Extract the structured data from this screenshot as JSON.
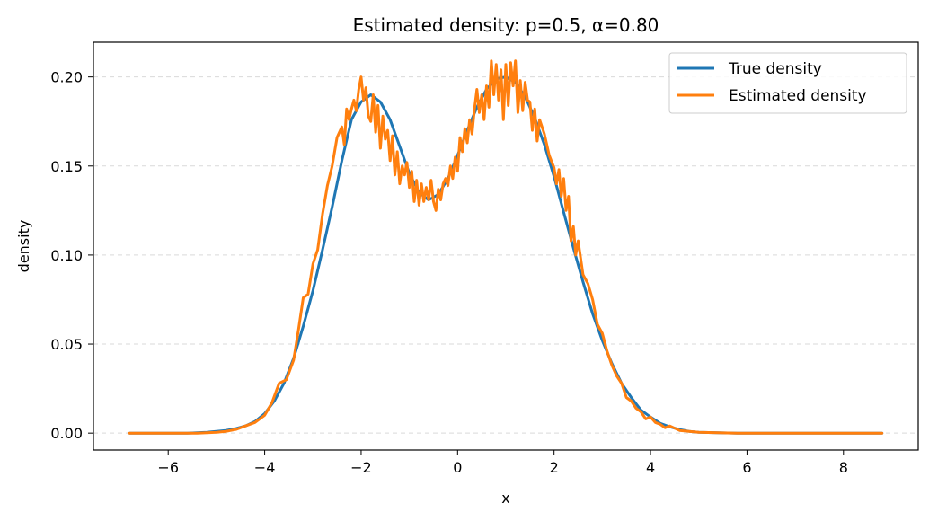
{
  "chart_data": {
    "type": "line",
    "title": "Estimated density: p=0.5, α=0.80",
    "xlabel": "x",
    "ylabel": "density",
    "xlim": [
      -7.55,
      9.55
    ],
    "ylim": [
      -0.0095,
      0.2195
    ],
    "xticks": [
      -6,
      -4,
      -2,
      0,
      2,
      4,
      6,
      8
    ],
    "xtick_labels": [
      "−6",
      "−4",
      "−2",
      "0",
      "2",
      "4",
      "6",
      "8"
    ],
    "yticks": [
      0.0,
      0.05,
      0.1,
      0.15,
      0.2
    ],
    "ytick_labels": [
      "0.00",
      "0.05",
      "0.10",
      "0.15",
      "0.20"
    ],
    "grid": {
      "y": true,
      "x": false,
      "style": "dashed"
    },
    "legend_placement": "top-right",
    "series": [
      {
        "name": "True density",
        "color": "#1f77b4",
        "x": [
          -6.8,
          -6.4,
          -6.0,
          -5.6,
          -5.2,
          -5.0,
          -4.8,
          -4.6,
          -4.4,
          -4.2,
          -4.0,
          -3.8,
          -3.6,
          -3.4,
          -3.2,
          -3.0,
          -2.8,
          -2.6,
          -2.4,
          -2.2,
          -2.0,
          -1.8,
          -1.6,
          -1.4,
          -1.2,
          -1.0,
          -0.8,
          -0.6,
          -0.4,
          -0.2,
          0.0,
          0.2,
          0.4,
          0.6,
          0.8,
          1.0,
          1.2,
          1.4,
          1.6,
          1.8,
          2.0,
          2.2,
          2.4,
          2.6,
          2.8,
          3.0,
          3.2,
          3.4,
          3.6,
          3.8,
          4.0,
          4.2,
          4.4,
          4.6,
          4.8,
          5.0,
          5.4,
          5.8,
          6.2,
          6.6,
          7.0,
          7.6,
          8.2,
          8.8
        ],
        "y": [
          0.0,
          0.0,
          0.0,
          0.0,
          0.0005,
          0.001,
          0.0015,
          0.0025,
          0.004,
          0.0065,
          0.011,
          0.018,
          0.028,
          0.042,
          0.06,
          0.08,
          0.103,
          0.127,
          0.153,
          0.176,
          0.186,
          0.19,
          0.186,
          0.176,
          0.161,
          0.146,
          0.135,
          0.131,
          0.134,
          0.143,
          0.156,
          0.17,
          0.183,
          0.193,
          0.199,
          0.2,
          0.197,
          0.189,
          0.177,
          0.162,
          0.144,
          0.124,
          0.104,
          0.085,
          0.067,
          0.052,
          0.039,
          0.028,
          0.02,
          0.013,
          0.009,
          0.0055,
          0.0035,
          0.002,
          0.001,
          0.0005,
          0.0002,
          0.0,
          0.0,
          0.0,
          0.0,
          0.0,
          0.0,
          0.0
        ]
      },
      {
        "name": "Estimated density",
        "color": "#ff7f0e",
        "x": [
          -6.8,
          -6.0,
          -5.4,
          -5.0,
          -4.8,
          -4.6,
          -4.4,
          -4.2,
          -4.0,
          -3.85,
          -3.7,
          -3.55,
          -3.4,
          -3.3,
          -3.2,
          -3.1,
          -3.0,
          -2.9,
          -2.8,
          -2.7,
          -2.6,
          -2.5,
          -2.4,
          -2.35,
          -2.3,
          -2.25,
          -2.2,
          -2.15,
          -2.1,
          -2.05,
          -2.0,
          -1.95,
          -1.9,
          -1.85,
          -1.8,
          -1.75,
          -1.7,
          -1.65,
          -1.6,
          -1.55,
          -1.5,
          -1.45,
          -1.4,
          -1.35,
          -1.3,
          -1.25,
          -1.2,
          -1.15,
          -1.1,
          -1.05,
          -1.0,
          -0.95,
          -0.9,
          -0.85,
          -0.8,
          -0.75,
          -0.7,
          -0.65,
          -0.6,
          -0.55,
          -0.5,
          -0.45,
          -0.4,
          -0.35,
          -0.3,
          -0.25,
          -0.2,
          -0.15,
          -0.1,
          -0.05,
          0.0,
          0.05,
          0.1,
          0.15,
          0.2,
          0.25,
          0.3,
          0.35,
          0.4,
          0.45,
          0.5,
          0.55,
          0.6,
          0.65,
          0.7,
          0.75,
          0.8,
          0.85,
          0.9,
          0.95,
          1.0,
          1.05,
          1.1,
          1.15,
          1.2,
          1.25,
          1.3,
          1.35,
          1.4,
          1.45,
          1.5,
          1.55,
          1.6,
          1.65,
          1.7,
          1.8,
          1.9,
          2.0,
          2.05,
          2.1,
          2.15,
          2.2,
          2.25,
          2.3,
          2.35,
          2.4,
          2.45,
          2.5,
          2.6,
          2.7,
          2.8,
          2.9,
          3.0,
          3.1,
          3.2,
          3.3,
          3.4,
          3.5,
          3.6,
          3.7,
          3.8,
          3.9,
          4.0,
          4.1,
          4.2,
          4.3,
          4.4,
          4.6,
          4.8,
          5.0,
          5.4,
          5.8,
          6.2,
          7.0,
          8.0,
          8.8
        ],
        "y": [
          0.0,
          0.0,
          0.0,
          0.0005,
          0.001,
          0.002,
          0.004,
          0.006,
          0.01,
          0.017,
          0.028,
          0.03,
          0.041,
          0.058,
          0.076,
          0.078,
          0.095,
          0.103,
          0.123,
          0.139,
          0.15,
          0.166,
          0.172,
          0.162,
          0.182,
          0.176,
          0.182,
          0.187,
          0.181,
          0.193,
          0.2,
          0.187,
          0.194,
          0.178,
          0.175,
          0.19,
          0.169,
          0.184,
          0.16,
          0.178,
          0.165,
          0.17,
          0.153,
          0.167,
          0.145,
          0.158,
          0.14,
          0.15,
          0.145,
          0.152,
          0.138,
          0.147,
          0.13,
          0.142,
          0.128,
          0.14,
          0.13,
          0.138,
          0.131,
          0.142,
          0.13,
          0.125,
          0.137,
          0.131,
          0.14,
          0.143,
          0.139,
          0.15,
          0.143,
          0.155,
          0.147,
          0.166,
          0.158,
          0.171,
          0.163,
          0.176,
          0.168,
          0.182,
          0.193,
          0.18,
          0.19,
          0.176,
          0.195,
          0.183,
          0.209,
          0.19,
          0.207,
          0.187,
          0.204,
          0.176,
          0.207,
          0.184,
          0.208,
          0.195,
          0.209,
          0.18,
          0.198,
          0.181,
          0.197,
          0.187,
          0.186,
          0.17,
          0.182,
          0.164,
          0.176,
          0.168,
          0.156,
          0.149,
          0.14,
          0.148,
          0.133,
          0.143,
          0.125,
          0.133,
          0.108,
          0.116,
          0.1,
          0.108,
          0.089,
          0.084,
          0.075,
          0.061,
          0.056,
          0.046,
          0.038,
          0.032,
          0.028,
          0.02,
          0.018,
          0.014,
          0.012,
          0.008,
          0.009,
          0.006,
          0.005,
          0.003,
          0.004,
          0.0015,
          0.001,
          0.0005,
          0.0002,
          0.0,
          0.0,
          0.0,
          0.0,
          0.0
        ]
      }
    ]
  }
}
